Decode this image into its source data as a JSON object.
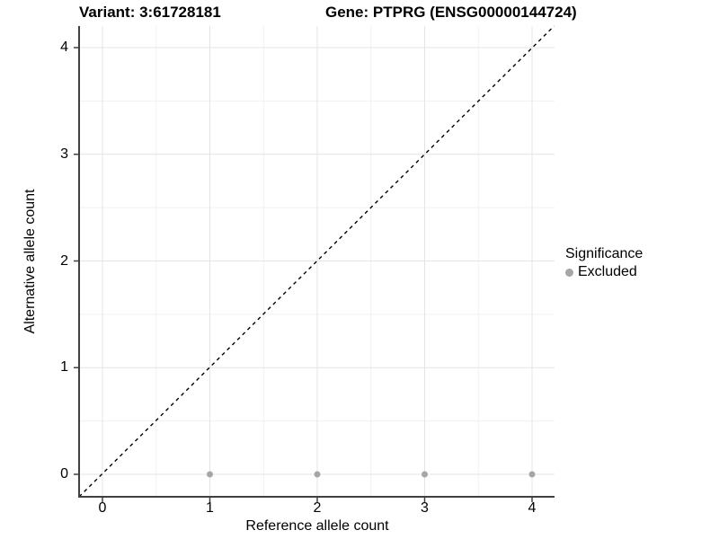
{
  "titles": {
    "variant": "Variant: 3:61728181",
    "gene": "Gene: PTPRG (ENSG00000144724)"
  },
  "chart_data": {
    "type": "scatter",
    "title_left": "Variant: 3:61728181",
    "title_right": "Gene: PTPRG (ENSG00000144724)",
    "xlabel": "Reference allele count",
    "ylabel": "Alternative allele count",
    "xlim": [
      -0.2,
      4.2
    ],
    "ylim": [
      -0.2,
      4.2
    ],
    "xticks": [
      0,
      1,
      2,
      3,
      4
    ],
    "yticks": [
      0,
      1,
      2,
      3,
      4
    ],
    "grid": "major and minor (0.5 steps), light gray, white background",
    "series": [
      {
        "name": "Excluded",
        "color": "#a6a6a6",
        "points": [
          [
            1,
            0
          ],
          [
            2,
            0
          ],
          [
            3,
            0
          ],
          [
            4,
            0
          ]
        ]
      }
    ],
    "reference_line": {
      "type": "identity y=x",
      "style": "dashed",
      "color": "#000000"
    },
    "legend": {
      "title": "Significance",
      "position": "right",
      "entries": [
        {
          "label": "Excluded",
          "color": "#a6a6a6"
        }
      ]
    },
    "colors": {
      "axis_line": "#404040",
      "grid_major": "#e4e4e4",
      "grid_minor": "#f1f1f1",
      "point": "#a6a6a6"
    }
  }
}
